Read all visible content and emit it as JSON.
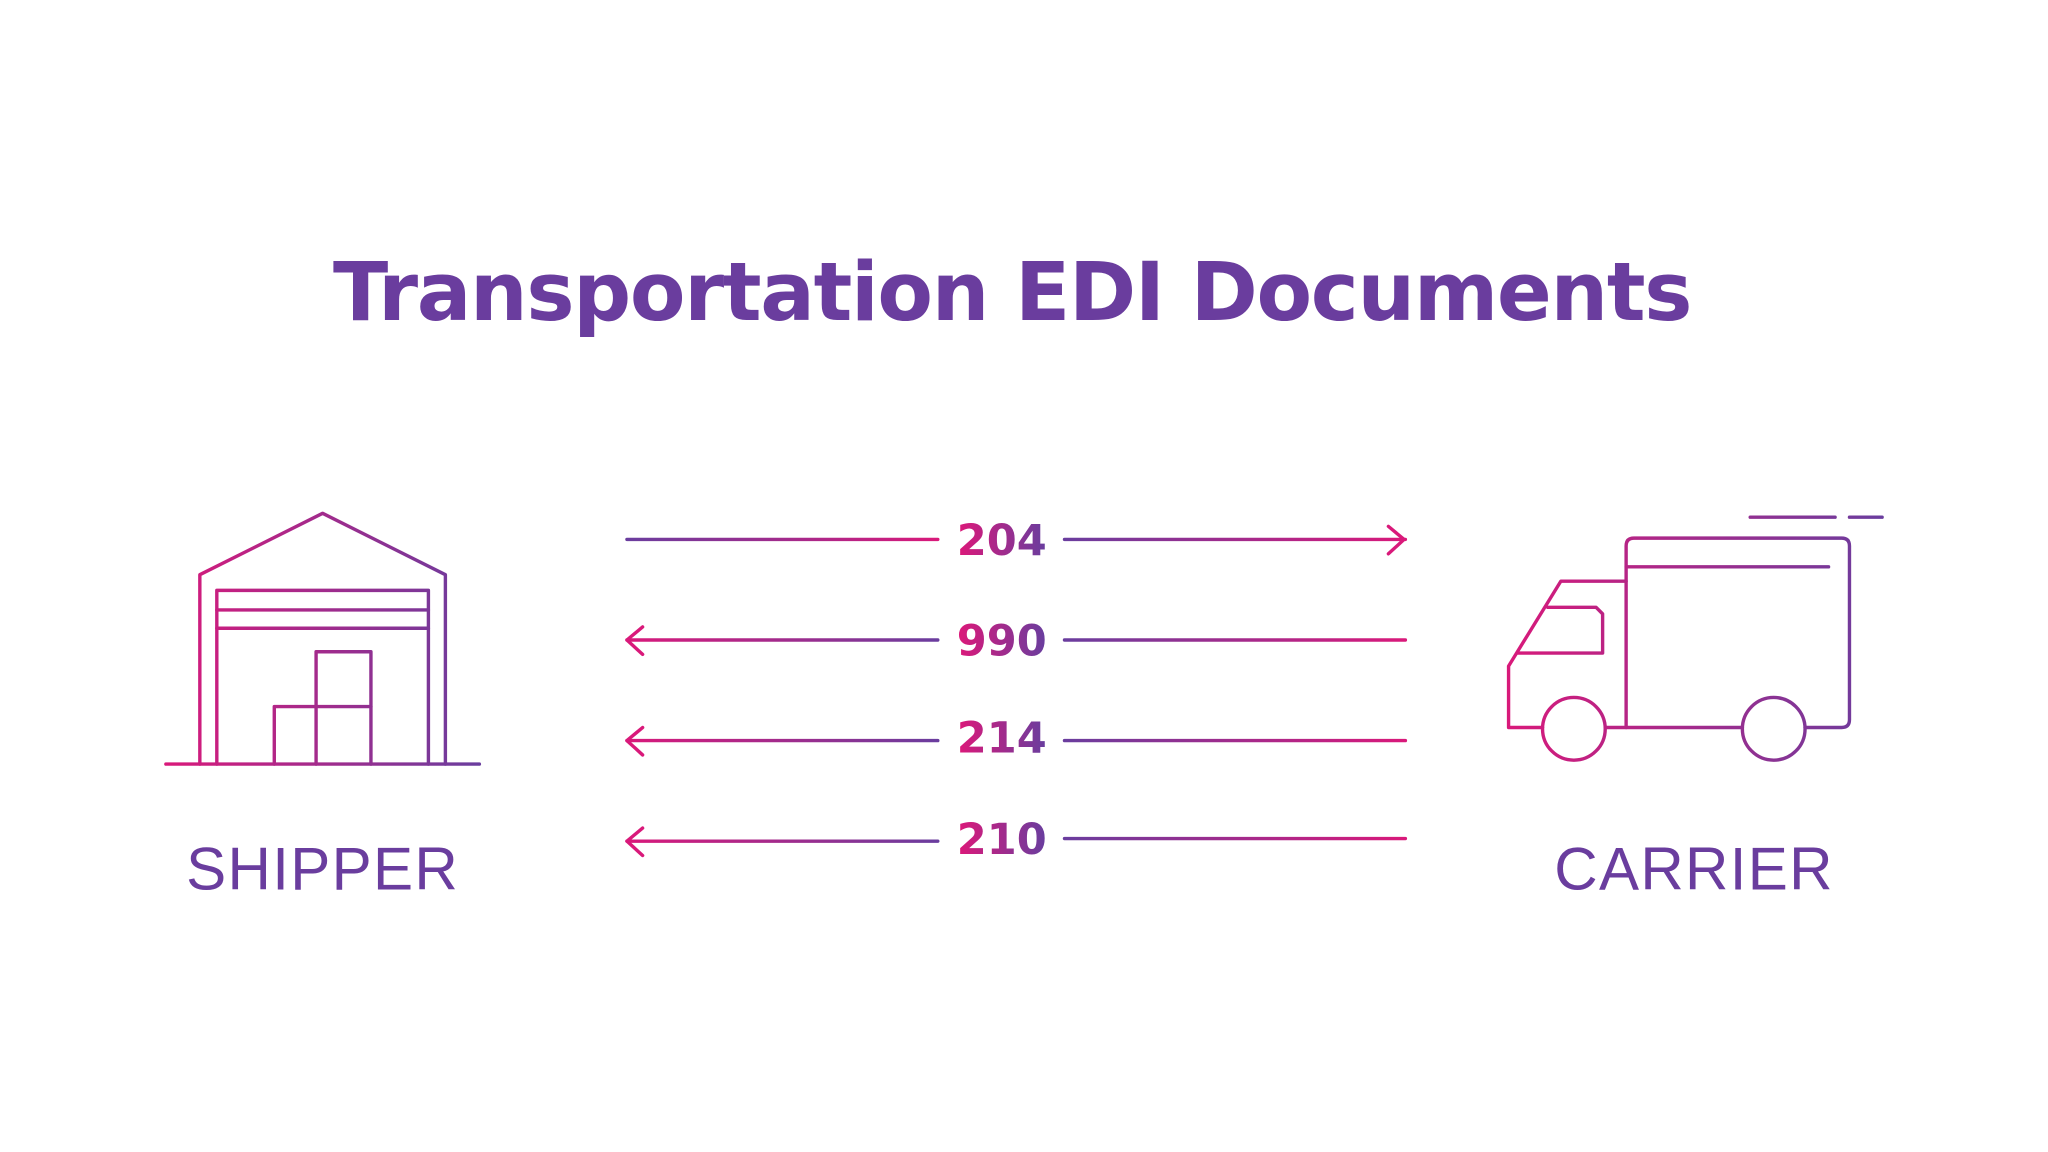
{
  "title": "Transportation EDI Documents",
  "shipper_label": "SHIPPER",
  "carrier_label": "CARRIER",
  "documents": [
    {
      "code": "204",
      "direction": "shipper-to-carrier"
    },
    {
      "code": "990",
      "direction": "carrier-to-shipper"
    },
    {
      "code": "214",
      "direction": "carrier-to-shipper"
    },
    {
      "code": "210",
      "direction": "carrier-to-shipper"
    }
  ],
  "colors": {
    "purple": "#6a3d9e",
    "pink": "#d9197a"
  },
  "icons": {
    "shipper": "warehouse-icon",
    "carrier": "truck-icon"
  }
}
